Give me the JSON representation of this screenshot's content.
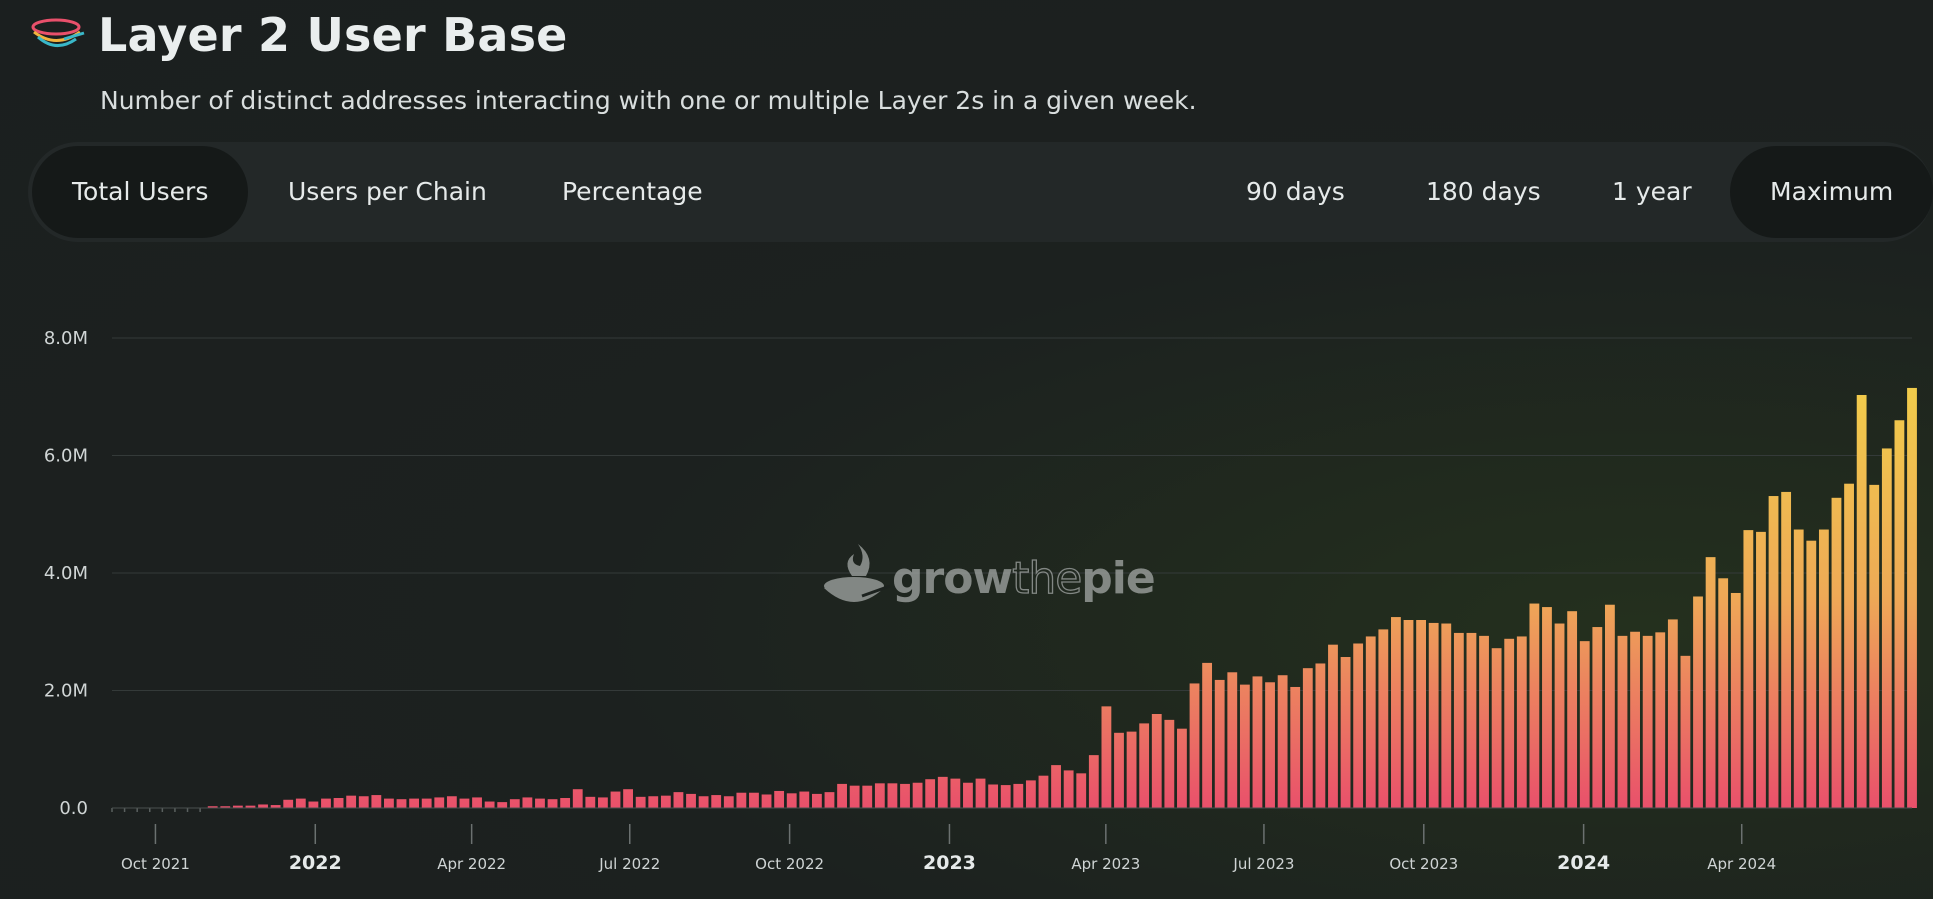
{
  "header": {
    "title": "Layer 2 User Base",
    "subtitle": "Number of distinct addresses interacting with one or multiple Layer 2s in a given week."
  },
  "toolbar": {
    "metrics": [
      "Total Users",
      "Users per Chain",
      "Percentage"
    ],
    "ranges": [
      "90 days",
      "180 days",
      "1 year",
      "Maximum"
    ],
    "active_metric": "Total Users",
    "active_range": "Maximum"
  },
  "watermark": {
    "pre": "grow",
    "mid": "the",
    "post": "pie"
  },
  "colors": {
    "bar_top": "#f2d448",
    "bar_bottom": "#e9506b",
    "grid": "#343a39"
  },
  "chart_data": {
    "type": "bar",
    "ylim": [
      0,
      8000000
    ],
    "y_ticks": [
      "8.0M",
      "6.0M",
      "4.0M",
      "2.0M",
      "0.0"
    ],
    "x_ticks": [
      {
        "label": "Oct 2021",
        "major": false
      },
      {
        "label": "2022",
        "major": true
      },
      {
        "label": "Apr 2022",
        "major": false
      },
      {
        "label": "Jul 2022",
        "major": false
      },
      {
        "label": "Oct 2022",
        "major": false
      },
      {
        "label": "2023",
        "major": true
      },
      {
        "label": "Apr 2023",
        "major": false
      },
      {
        "label": "Jul 2023",
        "major": false
      },
      {
        "label": "Oct 2023",
        "major": false
      },
      {
        "label": "2024",
        "major": true
      },
      {
        "label": "Apr 2024",
        "major": false
      }
    ],
    "x_start": "2021-09-06",
    "x_end": "2024-07-08",
    "grid": true,
    "weekly_users_millions": [
      0.0,
      0.0,
      0.0,
      0.0,
      0.0,
      0.0,
      0.0,
      0.0,
      0.03,
      0.03,
      0.04,
      0.04,
      0.06,
      0.05,
      0.14,
      0.16,
      0.11,
      0.16,
      0.17,
      0.21,
      0.2,
      0.22,
      0.16,
      0.15,
      0.16,
      0.16,
      0.18,
      0.2,
      0.16,
      0.18,
      0.11,
      0.1,
      0.15,
      0.18,
      0.16,
      0.15,
      0.17,
      0.32,
      0.19,
      0.18,
      0.28,
      0.32,
      0.19,
      0.2,
      0.21,
      0.27,
      0.24,
      0.2,
      0.22,
      0.2,
      0.26,
      0.26,
      0.23,
      0.29,
      0.25,
      0.28,
      0.24,
      0.27,
      0.41,
      0.38,
      0.38,
      0.42,
      0.42,
      0.41,
      0.43,
      0.49,
      0.53,
      0.5,
      0.43,
      0.5,
      0.4,
      0.39,
      0.41,
      0.47,
      0.55,
      0.73,
      0.64,
      0.59,
      0.9,
      1.73,
      1.28,
      1.3,
      1.44,
      1.6,
      1.5,
      1.35,
      2.12,
      2.47,
      2.18,
      2.31,
      2.1,
      2.24,
      2.14,
      2.26,
      2.06,
      2.38,
      2.46,
      2.78,
      2.57,
      2.8,
      2.92,
      3.04,
      3.25,
      3.2,
      3.2,
      3.15,
      3.14,
      2.98,
      2.98,
      2.93,
      2.72,
      2.88,
      2.92,
      3.48,
      3.42,
      3.14,
      3.35,
      2.84,
      3.08,
      3.46,
      2.93,
      3.0,
      2.93,
      2.99,
      3.21,
      2.59,
      3.6,
      4.27,
      3.91,
      3.66,
      4.73,
      4.7,
      5.31,
      5.38,
      4.74,
      4.55,
      4.74,
      5.28,
      5.52,
      7.03,
      5.5,
      6.12,
      6.6,
      7.15
    ]
  }
}
